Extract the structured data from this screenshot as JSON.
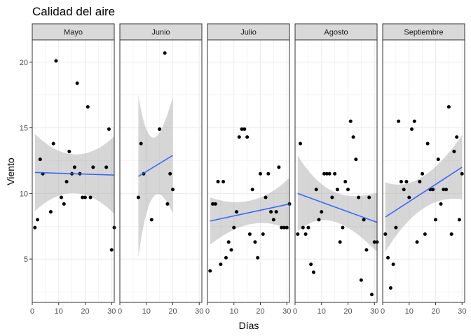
{
  "chart_data": {
    "type": "scatter",
    "title": "Calidad del aire",
    "xlabel": "Días",
    "ylabel": "Viento",
    "xlim": [
      0,
      31
    ],
    "ylim": [
      1.7,
      21.7
    ],
    "x_ticks": [
      0,
      10,
      20,
      30
    ],
    "y_ticks": [
      5,
      10,
      15,
      20
    ],
    "grid": true,
    "smooth": "lm",
    "colors": {
      "points": "#000000",
      "line": "#3366FF",
      "ribbon": "#999999",
      "strip": "#D9D9D9",
      "grid": "#EBEBEB"
    },
    "facets": [
      {
        "name": "Mayo",
        "points": [
          [
            1,
            7.4
          ],
          [
            2,
            8.0
          ],
          [
            3,
            12.6
          ],
          [
            4,
            11.5
          ],
          [
            7,
            8.6
          ],
          [
            8,
            13.8
          ],
          [
            9,
            20.1
          ],
          [
            11,
            9.7
          ],
          [
            12,
            9.2
          ],
          [
            13,
            10.9
          ],
          [
            14,
            13.2
          ],
          [
            15,
            11.5
          ],
          [
            16,
            12.0
          ],
          [
            17,
            18.4
          ],
          [
            18,
            11.5
          ],
          [
            19,
            9.7
          ],
          [
            20,
            9.7
          ],
          [
            21,
            16.6
          ],
          [
            22,
            9.7
          ],
          [
            23,
            12.0
          ],
          [
            28,
            12.0
          ],
          [
            29,
            14.9
          ],
          [
            30,
            5.7
          ],
          [
            31,
            7.4
          ]
        ],
        "fit": [
          11.6,
          11.4
        ],
        "ci_lo": [
          8.7,
          8.5
        ],
        "ci_hi": [
          14.6,
          14.4
        ]
      },
      {
        "name": "Junio",
        "points": [
          [
            7,
            9.7
          ],
          [
            8,
            13.8
          ],
          [
            9,
            11.5
          ],
          [
            12,
            8.0
          ],
          [
            15,
            14.9
          ],
          [
            17,
            20.7
          ],
          [
            18,
            9.2
          ],
          [
            19,
            11.5
          ],
          [
            20,
            10.3
          ]
        ],
        "fit": [
          11.3,
          12.9
        ],
        "ci_lo": [
          5.2,
          8.5
        ],
        "ci_hi": [
          17.5,
          17.3
        ]
      },
      {
        "name": "Julio",
        "points": [
          [
            1,
            4.1
          ],
          [
            2,
            9.2
          ],
          [
            3,
            9.2
          ],
          [
            4,
            10.9
          ],
          [
            5,
            4.6
          ],
          [
            6,
            10.9
          ],
          [
            7,
            5.1
          ],
          [
            8,
            6.3
          ],
          [
            9,
            5.7
          ],
          [
            10,
            7.4
          ],
          [
            11,
            8.6
          ],
          [
            12,
            14.3
          ],
          [
            13,
            14.9
          ],
          [
            14,
            14.9
          ],
          [
            15,
            14.3
          ],
          [
            16,
            6.9
          ],
          [
            17,
            10.3
          ],
          [
            18,
            6.3
          ],
          [
            19,
            5.1
          ],
          [
            20,
            11.5
          ],
          [
            21,
            6.9
          ],
          [
            22,
            9.7
          ],
          [
            23,
            11.5
          ],
          [
            24,
            8.6
          ],
          [
            25,
            8.0
          ],
          [
            26,
            8.6
          ],
          [
            27,
            12.0
          ],
          [
            28,
            7.4
          ],
          [
            29,
            7.4
          ],
          [
            30,
            7.4
          ],
          [
            31,
            9.2
          ]
        ],
        "fit": [
          7.9,
          9.2
        ],
        "ci_lo": [
          6.1,
          7.2
        ],
        "ci_hi": [
          9.7,
          11.2
        ]
      },
      {
        "name": "Agosto",
        "points": [
          [
            1,
            6.9
          ],
          [
            2,
            13.8
          ],
          [
            3,
            7.4
          ],
          [
            4,
            6.9
          ],
          [
            5,
            7.4
          ],
          [
            6,
            4.6
          ],
          [
            7,
            4.0
          ],
          [
            8,
            10.3
          ],
          [
            9,
            8.0
          ],
          [
            10,
            8.6
          ],
          [
            11,
            11.5
          ],
          [
            12,
            11.5
          ],
          [
            13,
            11.5
          ],
          [
            14,
            9.7
          ],
          [
            15,
            11.5
          ],
          [
            16,
            10.3
          ],
          [
            17,
            6.3
          ],
          [
            18,
            7.4
          ],
          [
            19,
            10.9
          ],
          [
            20,
            10.3
          ],
          [
            21,
            15.5
          ],
          [
            22,
            14.3
          ],
          [
            23,
            12.6
          ],
          [
            24,
            9.7
          ],
          [
            25,
            3.4
          ],
          [
            26,
            8.0
          ],
          [
            27,
            5.7
          ],
          [
            28,
            9.7
          ],
          [
            29,
            2.3
          ],
          [
            30,
            6.3
          ],
          [
            31,
            6.3
          ]
        ],
        "fit": [
          10.0,
          7.8
        ],
        "ci_lo": [
          7.2,
          5.5
        ],
        "ci_hi": [
          13.0,
          10.0
        ]
      },
      {
        "name": "Septiembre",
        "points": [
          [
            1,
            6.9
          ],
          [
            2,
            5.1
          ],
          [
            3,
            2.8
          ],
          [
            4,
            4.6
          ],
          [
            5,
            7.4
          ],
          [
            6,
            15.5
          ],
          [
            7,
            10.9
          ],
          [
            8,
            10.3
          ],
          [
            9,
            10.9
          ],
          [
            10,
            9.7
          ],
          [
            11,
            14.9
          ],
          [
            12,
            15.5
          ],
          [
            13,
            6.3
          ],
          [
            14,
            10.9
          ],
          [
            15,
            11.5
          ],
          [
            16,
            6.9
          ],
          [
            17,
            13.8
          ],
          [
            18,
            10.3
          ],
          [
            19,
            10.3
          ],
          [
            20,
            8.0
          ],
          [
            21,
            12.6
          ],
          [
            22,
            9.2
          ],
          [
            23,
            10.3
          ],
          [
            24,
            10.3
          ],
          [
            25,
            16.6
          ],
          [
            26,
            6.9
          ],
          [
            27,
            13.2
          ],
          [
            28,
            14.3
          ],
          [
            29,
            8.0
          ],
          [
            30,
            11.5
          ]
        ],
        "fit": [
          8.2,
          12.0
        ],
        "ci_lo": [
          5.5,
          9.5
        ],
        "ci_hi": [
          10.8,
          14.4
        ]
      }
    ]
  }
}
